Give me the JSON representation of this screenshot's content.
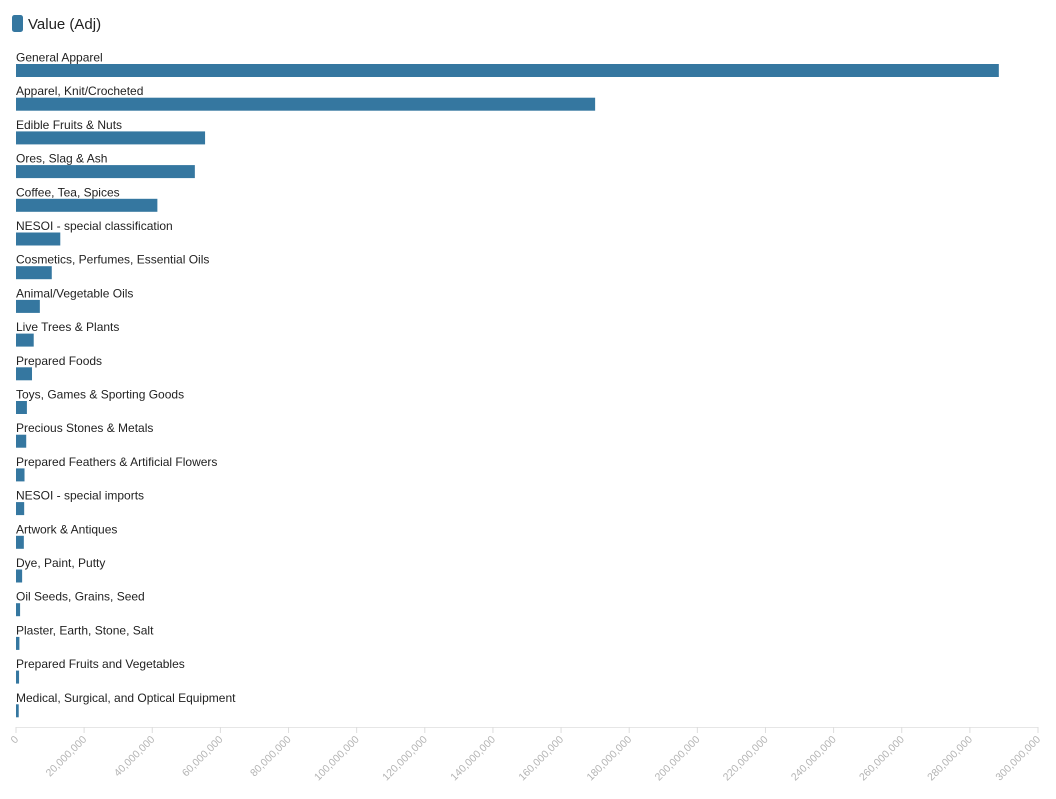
{
  "chart_data": {
    "type": "bar",
    "orientation": "horizontal",
    "legend": {
      "position": "top-left",
      "label": "Value (Adj)"
    },
    "series": [
      {
        "name": "Value (Adj)",
        "color": "#3577a0",
        "values": [
          288500000,
          170000000,
          55500000,
          52500000,
          41500000,
          13000000,
          10500000,
          7000000,
          5200000,
          4700000,
          3200000,
          3000000,
          2500000,
          2400000,
          2300000,
          1800000,
          1200000,
          1000000,
          900000,
          800000
        ]
      }
    ],
    "categories": [
      "General Apparel",
      "Apparel, Knit/Crocheted",
      "Edible Fruits & Nuts",
      "Ores, Slag & Ash",
      "Coffee, Tea, Spices",
      "NESOI - special classification",
      "Cosmetics, Perfumes, Essential Oils",
      "Animal/Vegetable Oils",
      "Live Trees & Plants",
      "Prepared Foods",
      "Toys, Games & Sporting Goods",
      "Precious Stones & Metals",
      "Prepared Feathers & Artificial Flowers",
      "NESOI - special imports",
      "Artwork & Antiques",
      "Dye, Paint, Putty",
      "Oil Seeds, Grains, Seed",
      "Plaster, Earth, Stone, Salt",
      "Prepared Fruits and Vegetables",
      "Medical, Surgical, and Optical Equipment"
    ],
    "xlim": [
      0,
      300000000
    ],
    "x_ticks": [
      0,
      20000000,
      40000000,
      60000000,
      80000000,
      100000000,
      120000000,
      140000000,
      160000000,
      180000000,
      200000000,
      220000000,
      240000000,
      260000000,
      280000000,
      300000000
    ],
    "x_tick_labels": [
      "0",
      "20,000,000",
      "40,000,000",
      "60,000,000",
      "80,000,000",
      "100,000,000",
      "120,000,000",
      "140,000,000",
      "160,000,000",
      "180,000,000",
      "200,000,000",
      "220,000,000",
      "240,000,000",
      "260,000,000",
      "280,000,000",
      "300,000,000"
    ],
    "grid": false
  }
}
